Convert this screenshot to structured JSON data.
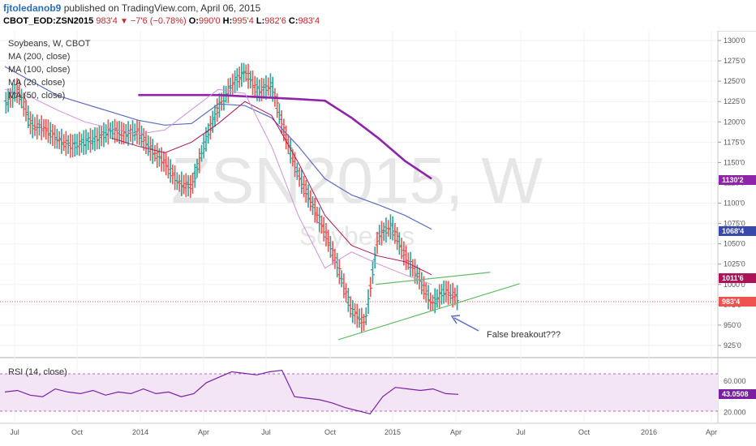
{
  "header": {
    "author": "fjtoledanob9",
    "published": "published on TradingView.com, April 06, 2015",
    "symbol": "CBOT_EOD:ZSN2015",
    "last": "983'4",
    "change": "−7'6 (−0.78%)",
    "o_label": "O:",
    "o_value": "990'0",
    "h_label": "H:",
    "h_value": "995'4",
    "l_label": "L:",
    "l_value": "982'6",
    "c_label": "C:",
    "c_value": "983'4"
  },
  "legend": {
    "title": "Soybeans, W, CBOT",
    "ma200": "MA (200, close)",
    "ma100": "MA (100, close)",
    "ma20": "MA (20, close)",
    "ma50": "MA (50, close)"
  },
  "watermark": {
    "main": "ZSN2015, W",
    "sub": "Soybeans"
  },
  "annotation": {
    "text": "False breakout???"
  },
  "rsi": {
    "label": "RSI (14, close)",
    "value_tag": "43.0508"
  },
  "price_tags": {
    "ma200": "1130'2",
    "ma100": "1068'4",
    "ma50": "1011'6",
    "last": "983'4"
  },
  "colors": {
    "up": "#26a69a",
    "down": "#ef5350",
    "ma200": "#8e24aa",
    "ma100": "#5c6bc0",
    "ma50": "#ad1457",
    "ma20": "#ce93d8",
    "trendline": "#66bb6a",
    "rsi_line": "#7b1fa2",
    "rsi_band": "#f3e5f5"
  },
  "chart_data": {
    "type": "line",
    "price_axis": {
      "ticks": [
        "1300'0",
        "1275'0",
        "1250'0",
        "1225'0",
        "1200'0",
        "1175'0",
        "1150'0",
        "1125'0",
        "1100'0",
        "1075'0",
        "1050'0",
        "1025'0",
        "1000'0",
        "975'0",
        "950'0",
        "925'0"
      ],
      "ylim": [
        915,
        1305
      ]
    },
    "time_axis": {
      "ticks": [
        "Jul",
        "Oct",
        "2014",
        "Apr",
        "Jul",
        "Oct",
        "2015",
        "Apr",
        "Jul",
        "Oct",
        "2016",
        "Apr"
      ]
    },
    "rsi_axis": {
      "ticks": [
        "60.000",
        "20.000"
      ],
      "ylim": [
        10,
        85
      ]
    },
    "series": [
      {
        "name": "MA (200, close)",
        "x": [
          5,
          8,
          11,
          12,
          13,
          14,
          15,
          16
        ],
        "y": [
          1233,
          1233,
          1228,
          1226,
          1205,
          1180,
          1152,
          1130
        ]
      },
      {
        "name": "MA (100, close)",
        "x": [
          0,
          1,
          2,
          3,
          4,
          5,
          6,
          7,
          8,
          9,
          10,
          11,
          12,
          13,
          14,
          15,
          16
        ],
        "y": [
          1268,
          1250,
          1232,
          1222,
          1212,
          1202,
          1196,
          1198,
          1222,
          1220,
          1205,
          1170,
          1130,
          1110,
          1098,
          1085,
          1068
        ]
      },
      {
        "name": "MA (50, close)",
        "x": [
          4,
          5,
          6,
          7,
          8,
          9,
          10,
          11,
          12,
          13,
          14,
          15,
          16
        ],
        "y": [
          1180,
          1170,
          1162,
          1175,
          1198,
          1225,
          1208,
          1150,
          1085,
          1048,
          1035,
          1028,
          1012
        ]
      },
      {
        "name": "MA (20, close)",
        "x": [
          0,
          1,
          2,
          3,
          4,
          5,
          6,
          7,
          8,
          9,
          10,
          11,
          12,
          13,
          14,
          15,
          16
        ],
        "y": [
          1240,
          1230,
          1214,
          1200,
          1192,
          1185,
          1190,
          1215,
          1240,
          1235,
          1170,
          1085,
          1020,
          1040,
          1025,
          1012,
          1000
        ]
      },
      {
        "name": "Soybeans, W, CBOT",
        "x": [
          0,
          0.5,
          1,
          1.5,
          2,
          2.5,
          3,
          3.5,
          4,
          4.5,
          5,
          5.5,
          6,
          6.5,
          7,
          7.5,
          8,
          8.5,
          9,
          9.5,
          10,
          10.5,
          11,
          11.5,
          12,
          12.5,
          13,
          13.5,
          14,
          14.5,
          15,
          15.5,
          16,
          16.5,
          17
        ],
        "y": [
          1222,
          1240,
          1195,
          1192,
          1178,
          1170,
          1175,
          1180,
          1190,
          1185,
          1188,
          1165,
          1150,
          1125,
          1120,
          1175,
          1218,
          1245,
          1262,
          1238,
          1245,
          1185,
          1135,
          1100,
          1065,
          1020,
          968,
          952,
          1060,
          1072,
          1035,
          1010,
          976,
          992,
          983
        ]
      },
      {
        "name": "RSI (14, close)",
        "x": [
          0,
          1,
          2,
          3,
          4,
          5,
          6,
          7,
          8,
          9,
          10,
          11,
          12,
          13,
          14,
          15,
          16,
          17,
          18,
          19,
          20,
          21,
          22,
          23,
          24,
          25,
          26,
          27,
          28,
          29,
          30,
          31,
          32,
          33,
          34,
          35,
          36
        ],
        "y": [
          46,
          48,
          42,
          40,
          50,
          46,
          44,
          48,
          42,
          46,
          44,
          50,
          44,
          46,
          40,
          44,
          58,
          65,
          72,
          70,
          68,
          72,
          74,
          40,
          38,
          36,
          32,
          26,
          22,
          18,
          40,
          52,
          50,
          48,
          50,
          44,
          43
        ]
      }
    ],
    "annotations": [
      "False breakout???"
    ]
  }
}
